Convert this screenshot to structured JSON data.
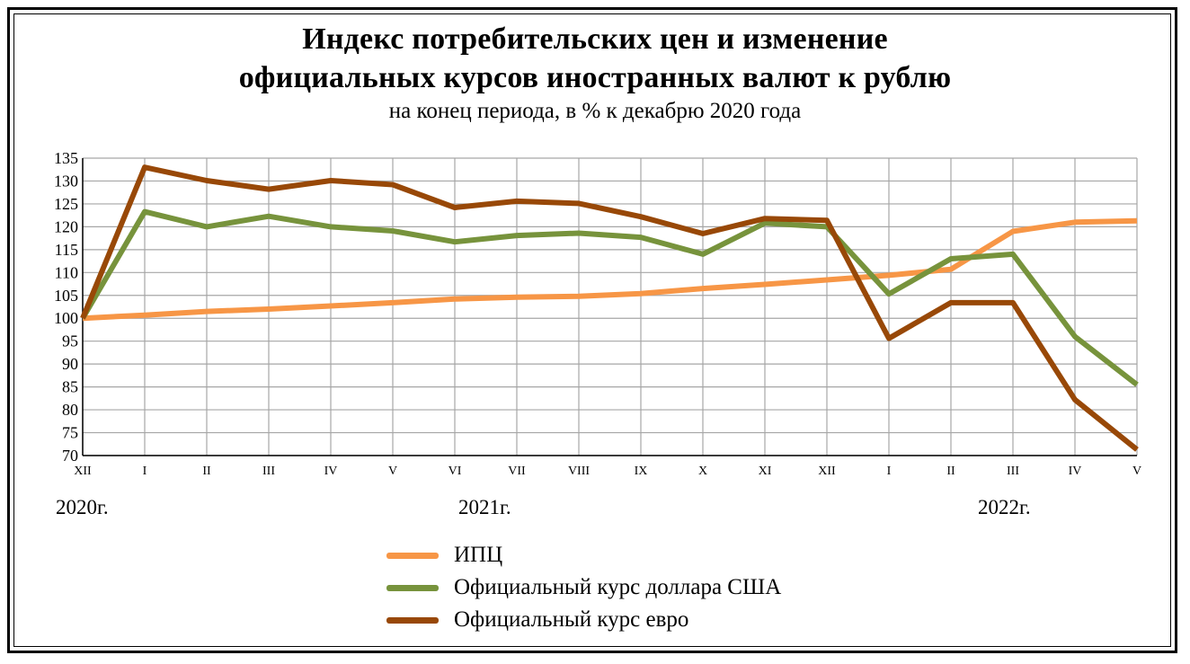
{
  "title_line1": "Индекс потребительских цен и изменение",
  "title_line2": "официальных курсов иностранных валют к рублю",
  "subtitle": "на конец периода, в % к декабрю 2020 года",
  "years": [
    "2020г.",
    "2021г.",
    "2022г."
  ],
  "legend": {
    "cpi": "ИПЦ",
    "usd": "Официальный курс доллара США",
    "eur": "Официальный курс евро"
  },
  "chart_data": {
    "type": "line",
    "categories": [
      "XII",
      "I",
      "II",
      "III",
      "IV",
      "V",
      "VI",
      "VII",
      "VIII",
      "IX",
      "X",
      "XI",
      "XII",
      "I",
      "II",
      "III",
      "IV",
      "V"
    ],
    "ylim": [
      70,
      135
    ],
    "yticks": [
      70,
      75,
      80,
      85,
      90,
      95,
      100,
      105,
      110,
      115,
      120,
      125,
      130,
      135
    ],
    "grid": true,
    "legend_position": "bottom",
    "series": [
      {
        "name": "ИПЦ",
        "color": "#f79646",
        "values": [
          100,
          100.7,
          101.5,
          102.0,
          102.7,
          103.4,
          104.2,
          104.6,
          104.8,
          105.4,
          106.5,
          107.4,
          108.4,
          109.4,
          110.7,
          119.0,
          121.0,
          121.3
        ]
      },
      {
        "name": "Официальный курс доллара США",
        "color": "#77933c",
        "values": [
          100,
          123.3,
          120.0,
          122.3,
          120.0,
          119.1,
          116.7,
          118.1,
          118.6,
          117.7,
          114.0,
          120.8,
          120.0,
          105.3,
          113.0,
          114.0,
          96.0,
          85.5
        ]
      },
      {
        "name": "Официальный курс евро",
        "color": "#984807",
        "values": [
          100,
          133.0,
          130.1,
          128.2,
          130.1,
          129.2,
          124.2,
          125.6,
          125.1,
          122.2,
          118.5,
          121.8,
          121.4,
          95.6,
          103.4,
          103.4,
          82.2,
          71.3
        ]
      }
    ]
  }
}
